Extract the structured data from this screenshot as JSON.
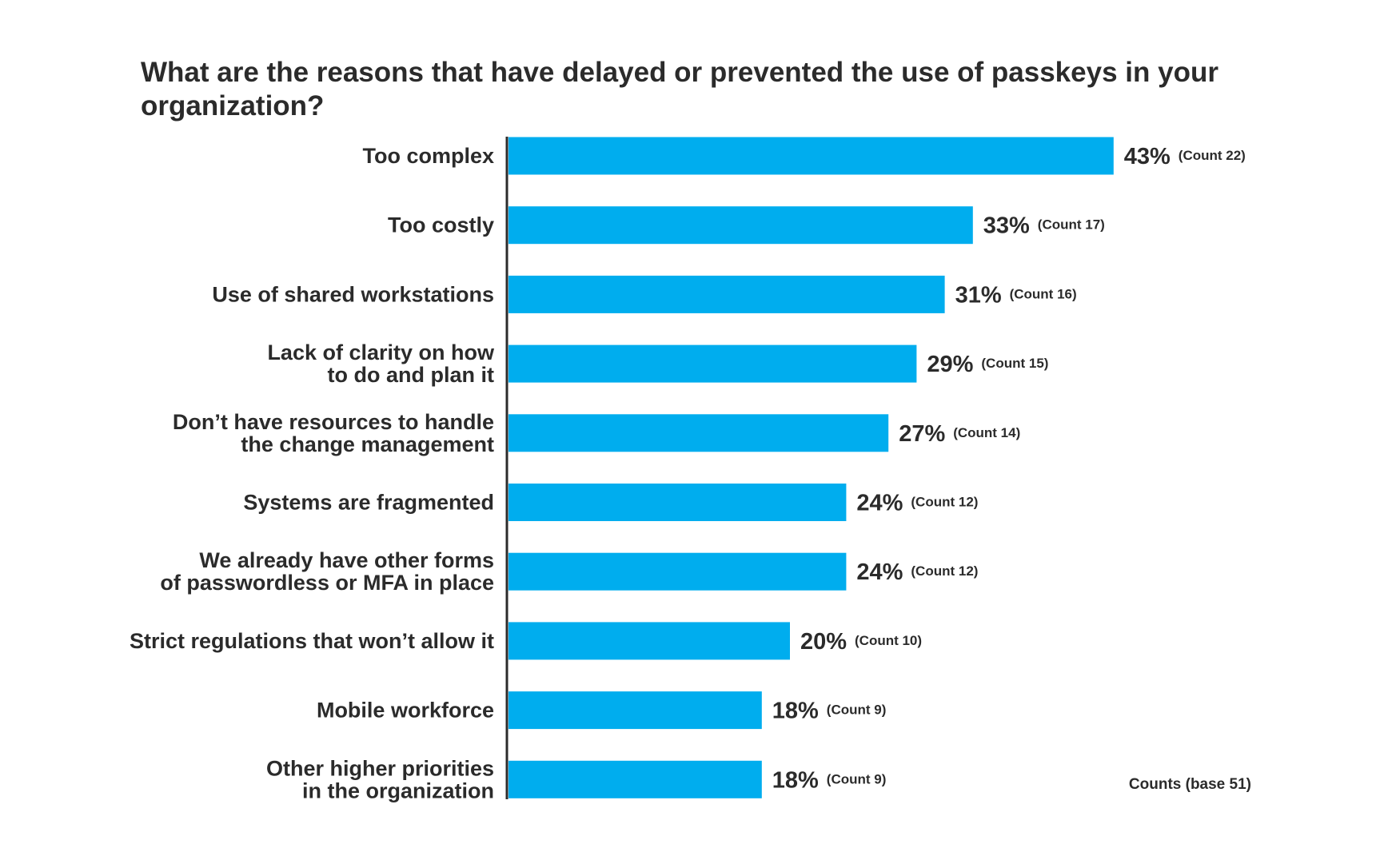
{
  "chart_data": {
    "type": "bar",
    "orientation": "horizontal",
    "title": "What are the reasons that have delayed or prevented the use of passkeys in your organization?",
    "categories": [
      "Too complex",
      "Too costly",
      "Use of shared workstations",
      "Lack of clarity on how\nto do and plan it",
      "Don’t have resources to handle\nthe change management",
      "Systems are fragmented",
      "We already have other forms\nof passwordless or MFA in place",
      "Strict regulations that won’t allow it",
      "Mobile workforce",
      "Other higher priorities\nin the organization"
    ],
    "values": [
      43,
      33,
      31,
      29,
      27,
      24,
      24,
      20,
      18,
      18
    ],
    "value_labels": [
      "43%",
      "33%",
      "31%",
      "29%",
      "27%",
      "24%",
      "24%",
      "20%",
      "18%",
      "18%"
    ],
    "counts": [
      22,
      17,
      16,
      15,
      14,
      12,
      12,
      10,
      9,
      9
    ],
    "count_labels": [
      "(Count 22)",
      "(Count 17)",
      "(Count 16)",
      "(Count 15)",
      "(Count 14)",
      "(Count 12)",
      "(Count 12)",
      "(Count 10)",
      "(Count 9)",
      "(Count 9)"
    ],
    "unit": "%",
    "note": "Counts (base 51)",
    "bar_color": "#00adee",
    "axis_color": "#2b2b2b",
    "grid": false,
    "legend": "none"
  }
}
